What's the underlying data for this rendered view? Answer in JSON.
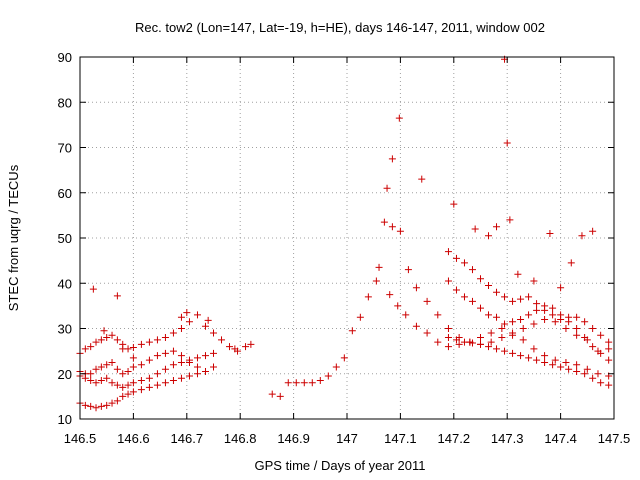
{
  "chart_data": {
    "type": "scatter",
    "title": "Rec. tow2 (Lon=147, Lat=-19, h=HE), days 146-147, 2011, window 002",
    "xlabel": "GPS time / Days of year 2011",
    "ylabel": "STEC from uqrg / TECUs",
    "xlim": [
      146.5,
      147.5
    ],
    "ylim": [
      10,
      90
    ],
    "xticks": [
      "146.5",
      "146.6",
      "146.7",
      "146.8",
      "146.9",
      "147",
      "147.1",
      "147.2",
      "147.3",
      "147.4",
      "147.5"
    ],
    "yticks": [
      "10",
      "20",
      "30",
      "40",
      "50",
      "60",
      "70",
      "80",
      "90"
    ],
    "grid": true,
    "marker": "+",
    "color": "#cc0000",
    "x": [
      146.5,
      146.51,
      146.52,
      146.53,
      146.54,
      146.55,
      146.56,
      146.57,
      146.58,
      146.59,
      146.6,
      146.615,
      146.63,
      146.645,
      146.66,
      146.675,
      146.69,
      146.705,
      146.72,
      146.735,
      146.75,
      146.765,
      146.78,
      146.795,
      146.5,
      146.51,
      146.52,
      146.53,
      146.54,
      146.55,
      146.56,
      146.57,
      146.58,
      146.59,
      146.6,
      146.615,
      146.63,
      146.645,
      146.66,
      146.675,
      146.69,
      146.705,
      146.72,
      146.735,
      146.75,
      146.5,
      146.51,
      146.52,
      146.53,
      146.54,
      146.55,
      146.56,
      146.57,
      146.58,
      146.59,
      146.6,
      146.615,
      146.63,
      146.645,
      146.66,
      146.675,
      146.69,
      146.705,
      146.72,
      146.5,
      146.51,
      146.52,
      146.53,
      146.54,
      146.55,
      146.56,
      146.57,
      146.58,
      146.59,
      146.6,
      146.615,
      146.63,
      146.645,
      146.66,
      146.675,
      146.69,
      146.705,
      146.72,
      146.735,
      146.75,
      146.525,
      146.545,
      146.57,
      146.58,
      146.6,
      146.69,
      146.7,
      146.74,
      146.79,
      146.81,
      146.82,
      146.86,
      146.875,
      146.89,
      146.905,
      146.92,
      146.935,
      146.95,
      146.965,
      146.98,
      146.995,
      147.01,
      147.025,
      147.04,
      147.055,
      147.06,
      147.07,
      147.075,
      147.085,
      147.1,
      147.115,
      147.13,
      147.15,
      147.17,
      147.19,
      147.21,
      147.23,
      147.25,
      147.27,
      147.29,
      147.31,
      147.33,
      147.35,
      147.37,
      147.39,
      147.41,
      147.43,
      147.45,
      147.47,
      147.49,
      147.08,
      147.095,
      147.11,
      147.13,
      147.15,
      147.17,
      147.19,
      147.21,
      147.23,
      147.25,
      147.27,
      147.29,
      147.31,
      147.33,
      147.35,
      147.37,
      147.39,
      147.41,
      147.43,
      147.45,
      147.47,
      147.49,
      147.19,
      147.205,
      147.22,
      147.235,
      147.25,
      147.265,
      147.28,
      147.295,
      147.31,
      147.325,
      147.34,
      147.355,
      147.37,
      147.385,
      147.4,
      147.415,
      147.43,
      147.445,
      147.46,
      147.475,
      147.49,
      147.19,
      147.205,
      147.22,
      147.235,
      147.25,
      147.265,
      147.28,
      147.295,
      147.31,
      147.325,
      147.34,
      147.355,
      147.37,
      147.385,
      147.4,
      147.415,
      147.43,
      147.445,
      147.46,
      147.475,
      147.49,
      147.19,
      147.205,
      147.22,
      147.235,
      147.25,
      147.265,
      147.28,
      147.295,
      147.31,
      147.325,
      147.34,
      147.355,
      147.37,
      147.385,
      147.4,
      147.415,
      147.43,
      147.445,
      147.46,
      147.475,
      147.49,
      147.085,
      147.098,
      147.14,
      147.2,
      147.24,
      147.265,
      147.28,
      147.295,
      147.3,
      147.305,
      147.32,
      147.35,
      147.38,
      147.4,
      147.42,
      147.44,
      147.46
    ],
    "y": [
      24.5,
      25.5,
      26.0,
      27.0,
      27.5,
      28.0,
      28.5,
      27.5,
      26.5,
      25.5,
      25.8,
      26.5,
      27.0,
      27.5,
      28.0,
      29.0,
      30.0,
      31.5,
      33.0,
      30.5,
      29.0,
      27.5,
      26.0,
      25.0,
      20.5,
      20.0,
      20.0,
      21.0,
      21.5,
      22.0,
      22.5,
      21.0,
      20.0,
      20.5,
      21.5,
      22.0,
      23.0,
      24.0,
      24.5,
      25.0,
      24.0,
      22.5,
      21.5,
      20.5,
      21.5,
      13.5,
      13.0,
      12.8,
      12.5,
      12.8,
      13.0,
      13.5,
      14.0,
      15.0,
      15.5,
      16.0,
      16.5,
      17.0,
      17.5,
      18.0,
      18.5,
      19.0,
      19.5,
      20.0,
      19.5,
      19.0,
      18.5,
      18.0,
      18.5,
      19.0,
      18.0,
      17.5,
      17.0,
      17.5,
      18.0,
      18.5,
      19.0,
      20.0,
      21.0,
      22.0,
      22.5,
      23.0,
      23.5,
      24.0,
      24.5,
      38.7,
      29.5,
      37.2,
      25.5,
      23.5,
      32.5,
      33.5,
      31.8,
      25.5,
      26.0,
      26.5,
      15.5,
      15.0,
      18.0,
      18.0,
      18.0,
      18.0,
      18.5,
      19.5,
      21.5,
      23.5,
      29.5,
      32.5,
      37.0,
      40.5,
      43.5,
      53.5,
      61.0,
      67.5,
      51.5,
      43.0,
      39.0,
      36.0,
      33.0,
      30.0,
      28.0,
      27.0,
      26.5,
      27.0,
      28.0,
      28.5,
      30.0,
      31.0,
      32.0,
      31.5,
      30.0,
      28.5,
      27.5,
      25.0,
      25.5,
      37.5,
      35.0,
      33.0,
      30.5,
      29.0,
      27.0,
      26.0,
      26.5,
      27.0,
      28.0,
      29.0,
      30.0,
      29.0,
      27.5,
      25.5,
      24.0,
      23.0,
      22.5,
      22.0,
      21.0,
      20.0,
      19.5,
      47.0,
      45.5,
      44.5,
      43.0,
      41.0,
      39.5,
      38.0,
      37.0,
      36.0,
      36.5,
      37.0,
      35.5,
      34.0,
      33.0,
      32.0,
      32.5,
      32.5,
      31.5,
      30.0,
      28.5,
      27.0,
      40.5,
      38.5,
      37.0,
      36.0,
      34.5,
      33.0,
      32.5,
      31.0,
      31.5,
      32.0,
      33.0,
      34.0,
      35.0,
      34.5,
      33.0,
      31.5,
      30.0,
      28.0,
      26.0,
      24.5,
      23.0,
      28.0,
      27.5,
      27.0,
      26.8,
      26.5,
      26.0,
      25.5,
      25.0,
      24.5,
      24.0,
      23.5,
      23.0,
      22.5,
      22.0,
      21.5,
      21.0,
      20.5,
      20.0,
      19.0,
      18.0,
      17.5,
      52.5,
      76.5,
      63.0,
      57.5,
      52.0,
      50.5,
      52.5,
      89.5,
      71.0,
      54.0,
      42.0,
      40.5,
      51.0,
      39.0,
      44.5,
      50.5,
      51.5
    ]
  }
}
